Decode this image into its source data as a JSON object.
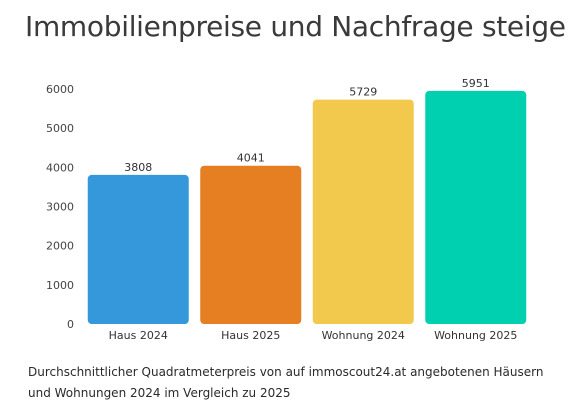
{
  "title": "Immobilienpreise und Nachfrage steigen",
  "caption": "Durchschnittlicher Quadratmeterpreis von auf immoscout24.at angebotenen Häusern und Wohnungen 2024 im Vergleich zu 2025",
  "chart_data": {
    "type": "bar",
    "categories": [
      "Haus 2024",
      "Haus 2025",
      "Wohnung 2024",
      "Wohnung 2025"
    ],
    "values": [
      3808,
      4041,
      5729,
      5951
    ],
    "colors": [
      "#3498db",
      "#e67e22",
      "#f2c94c",
      "#00cfb0"
    ],
    "ylim": [
      0,
      6000
    ],
    "yticks": [
      0,
      1000,
      2000,
      3000,
      4000,
      5000,
      6000
    ],
    "grid": false,
    "legend": "none"
  }
}
